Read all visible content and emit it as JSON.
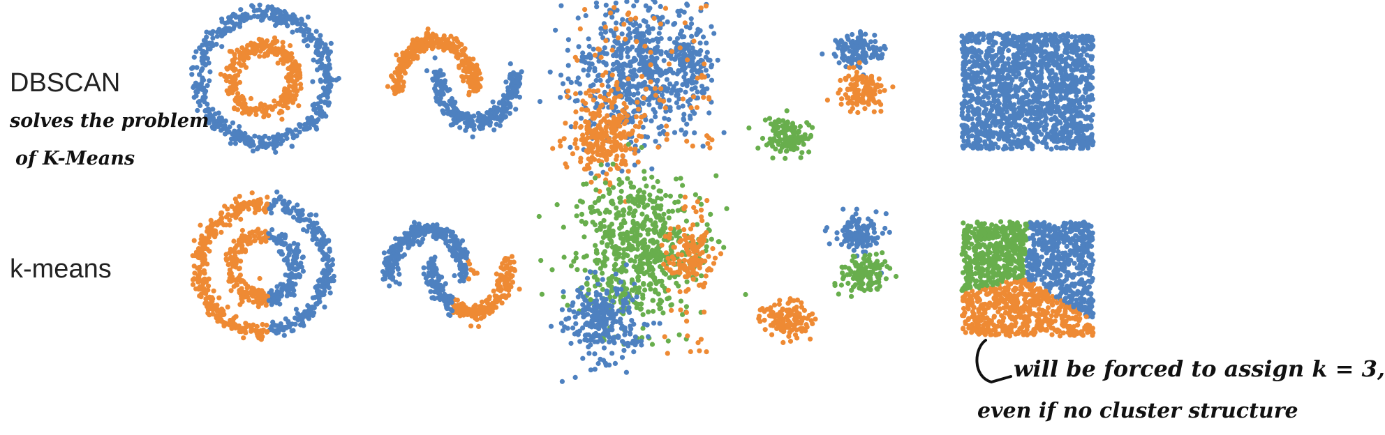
{
  "labels": {
    "dbscan": "DBSCAN",
    "kmeans": "k-means"
  },
  "annotations": {
    "note_line1": "solves the problem",
    "note_line2": "of K-Means",
    "forced_line1": "will be forced to assign k = 3,",
    "forced_line2": "even if no cluster structure"
  },
  "colors": {
    "blue": "#4e81c0",
    "orange": "#ee8a34",
    "green": "#68ae4d",
    "ink": "#111111"
  },
  "chart_data": {
    "type": "scatter",
    "rows": [
      "DBSCAN",
      "k-means"
    ],
    "datasets": [
      "circles",
      "moons",
      "varied blobs",
      "small blobs",
      "uniform square"
    ],
    "point_clusters": {
      "DBSCAN": {
        "circles": [
          "blue",
          "orange"
        ],
        "moons": [
          "orange",
          "blue"
        ],
        "varied blobs": [
          "blue",
          "orange",
          "noise: orange"
        ],
        "small blobs": [
          "blue",
          "orange",
          "green"
        ],
        "uniform square": [
          "blue"
        ]
      },
      "k-means": {
        "circles": [
          "orange",
          "blue"
        ],
        "moons": [
          "blue",
          "orange"
        ],
        "varied blobs": [
          "green",
          "blue",
          "orange"
        ],
        "small blobs": [
          "blue",
          "green",
          "orange"
        ],
        "uniform square": [
          "green",
          "blue",
          "orange"
        ]
      }
    },
    "grid": false
  }
}
